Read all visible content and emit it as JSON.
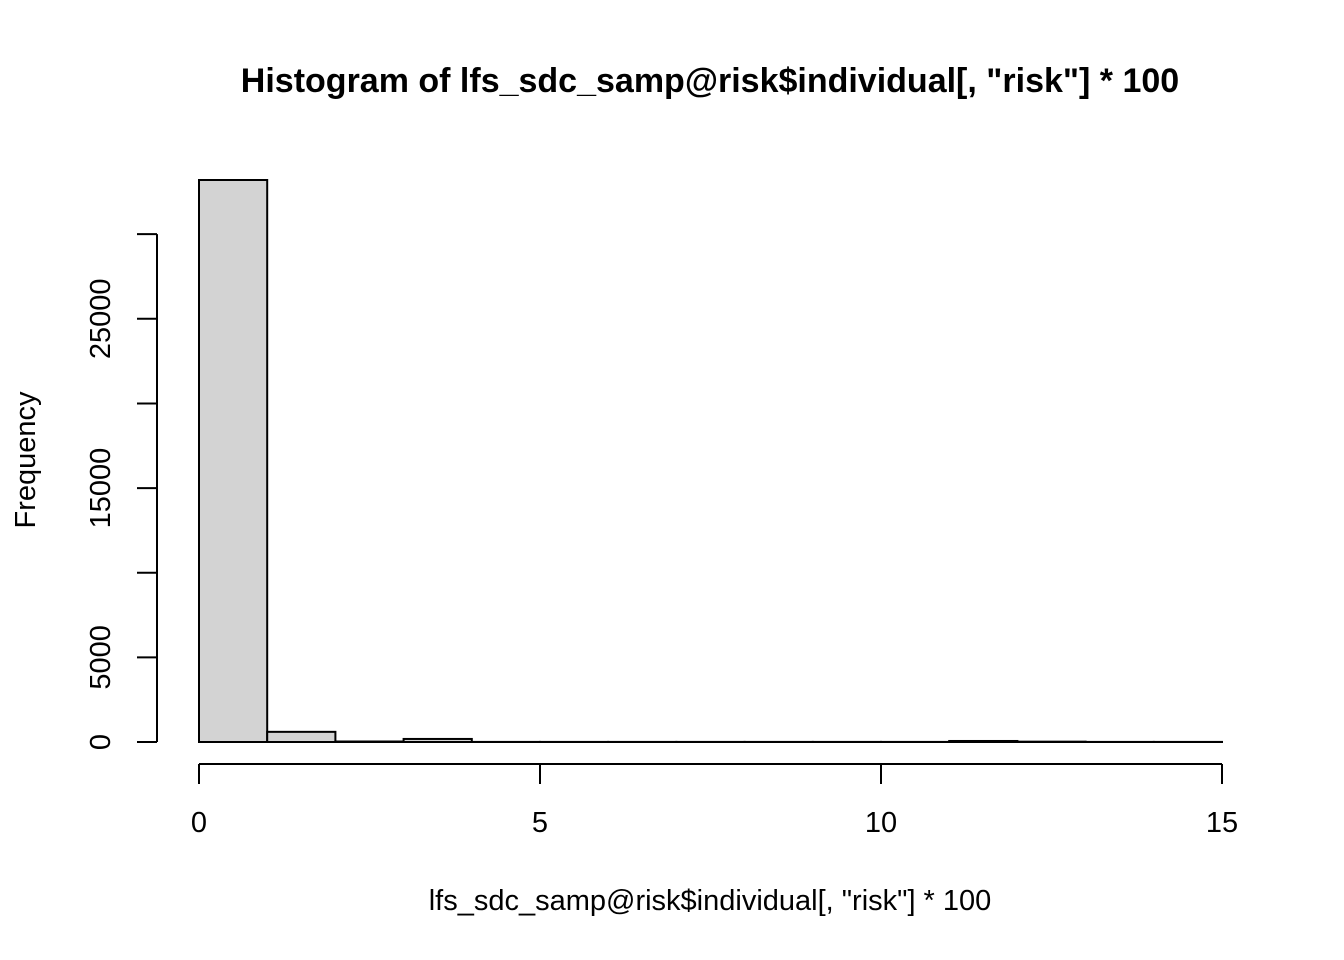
{
  "chart_data": {
    "type": "bar",
    "title": "Histogram of lfs_sdc_samp@risk$individual[, \"risk\"] * 100",
    "xlabel": "lfs_sdc_samp@risk$individual[, \"risk\"] * 100",
    "ylabel": "Frequency",
    "bin_edges": [
      0,
      1,
      2,
      3,
      4,
      5,
      6,
      7,
      8,
      9,
      10,
      11,
      12,
      13,
      14,
      15
    ],
    "values": [
      33200,
      600,
      30,
      180,
      5,
      5,
      5,
      5,
      5,
      5,
      5,
      60,
      20,
      5,
      5
    ],
    "xlim": [
      0,
      15
    ],
    "ylim": [
      0,
      33200
    ],
    "x_ticks": [
      0,
      5,
      10,
      15
    ],
    "x_tick_labels": [
      "0",
      "5",
      "10",
      "15"
    ],
    "y_ticks": [
      0,
      5000,
      10000,
      15000,
      20000,
      25000,
      30000
    ],
    "y_tick_labels": [
      "0",
      "5000",
      "",
      "15000",
      "",
      "25000",
      ""
    ],
    "grid": false,
    "colors": {
      "bar_fill": "#d3d3d3",
      "bar_stroke": "#000000"
    }
  }
}
